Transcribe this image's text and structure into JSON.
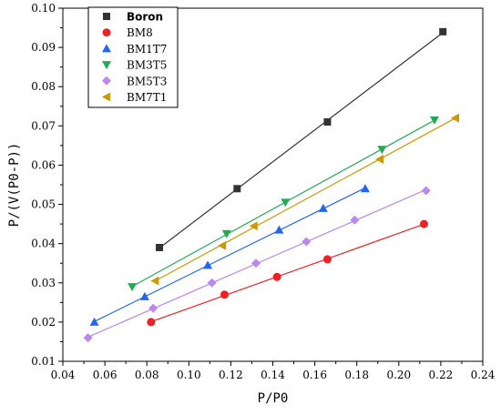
{
  "chart_data": {
    "type": "scatter",
    "xlabel": "P/P0",
    "ylabel": "P/(V(P0-P))",
    "xlim": [
      0.04,
      0.24
    ],
    "ylim": [
      0.01,
      0.1
    ],
    "xticks": [
      "0.04",
      "0.06",
      "0.08",
      "0.10",
      "0.12",
      "0.14",
      "0.16",
      "0.18",
      "0.20",
      "0.22",
      "0.24"
    ],
    "yticks": [
      "0.01",
      "0.02",
      "0.03",
      "0.04",
      "0.05",
      "0.06",
      "0.07",
      "0.08",
      "0.09",
      "0.10"
    ],
    "legend_position": "top-left",
    "series": [
      {
        "name": "Boron",
        "color": "#333333",
        "marker": "square",
        "x": [
          0.086,
          0.123,
          0.166,
          0.221
        ],
        "y": [
          0.039,
          0.054,
          0.071,
          0.094
        ]
      },
      {
        "name": "BM8",
        "color": "#ee2222",
        "marker": "circle",
        "x": [
          0.082,
          0.117,
          0.142,
          0.166,
          0.212
        ],
        "y": [
          0.02,
          0.027,
          0.0315,
          0.036,
          0.045
        ]
      },
      {
        "name": "BM1T7",
        "color": "#2266ee",
        "marker": "triangle-up",
        "x": [
          0.055,
          0.079,
          0.109,
          0.143,
          0.164,
          0.184
        ],
        "y": [
          0.02,
          0.0265,
          0.0345,
          0.0435,
          0.049,
          0.054
        ]
      },
      {
        "name": "BM3T5",
        "color": "#22aa55",
        "marker": "triangle-down",
        "x": [
          0.073,
          0.118,
          0.146,
          0.192,
          0.217
        ],
        "y": [
          0.029,
          0.0425,
          0.0505,
          0.064,
          0.0715
        ]
      },
      {
        "name": "BM5T3",
        "color": "#bb88ee",
        "marker": "diamond",
        "x": [
          0.052,
          0.083,
          0.111,
          0.132,
          0.156,
          0.179,
          0.213
        ],
        "y": [
          0.016,
          0.0235,
          0.03,
          0.035,
          0.0405,
          0.046,
          0.0535
        ]
      },
      {
        "name": "BM7T1",
        "color": "#cc9900",
        "marker": "triangle-left",
        "x": [
          0.084,
          0.116,
          0.131,
          0.191,
          0.227
        ],
        "y": [
          0.0305,
          0.0395,
          0.0445,
          0.0615,
          0.072
        ]
      }
    ]
  }
}
